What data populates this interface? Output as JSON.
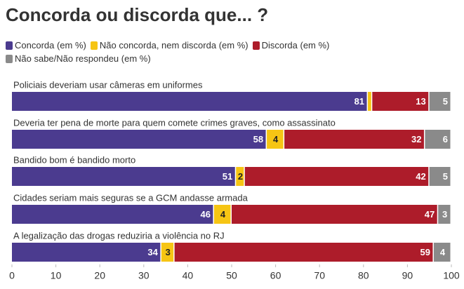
{
  "chart_data": {
    "type": "stacked-bar-horizontal",
    "title": "Concorda ou discorda que... ?",
    "categories": [
      "Policiais deveriam usar câmeras em uniformes",
      "Deveria ter pena de morte para quem comete crimes graves, como assassinato",
      "Bandido bom é bandido morto",
      "Cidades seriam mais seguras se a GCM andasse armada",
      "A legalização das drogas reduziria a violência no RJ"
    ],
    "series": [
      {
        "name": "Concorda (em %)",
        "color": "#4b3b8f",
        "values": [
          81,
          58,
          51,
          46,
          34
        ]
      },
      {
        "name": "Não concorda, nem discorda (em %)",
        "color": "#f6c514",
        "values": [
          1,
          4,
          2,
          4,
          3
        ],
        "value_labels": [
          null,
          "4",
          "2",
          "4",
          "3"
        ]
      },
      {
        "name": "Discorda (em %)",
        "color": "#ad1c2a",
        "values": [
          13,
          32,
          42,
          47,
          59
        ]
      },
      {
        "name": "Não sabe/Não respondeu (em %)",
        "color": "#8a8a8a",
        "values": [
          5,
          6,
          5,
          3,
          4
        ]
      }
    ],
    "xlim": [
      0,
      100
    ],
    "xticks": [
      0,
      10,
      20,
      30,
      40,
      50,
      60,
      70,
      80,
      90,
      100
    ]
  }
}
